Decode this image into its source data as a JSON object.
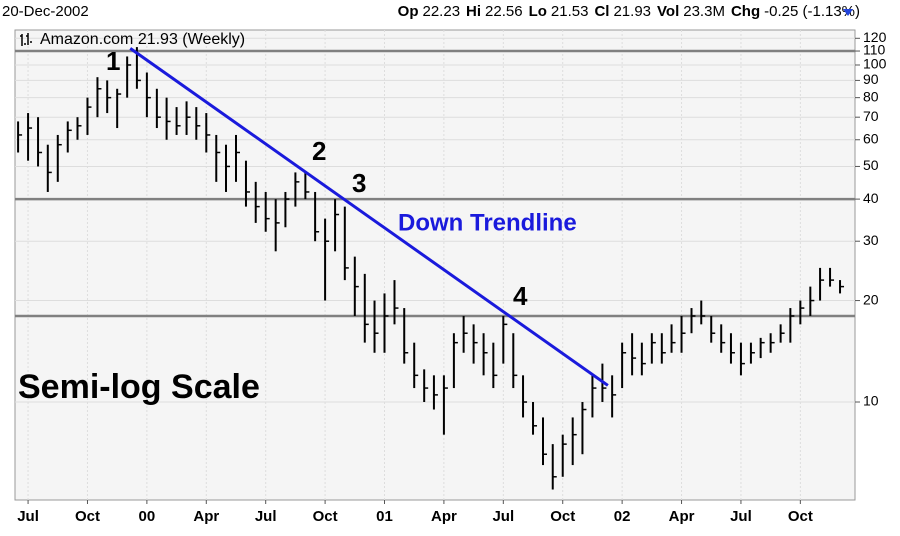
{
  "header": {
    "date": "20-Dec-2002",
    "stats": [
      {
        "label": "Op",
        "value": "22.23"
      },
      {
        "label": "Hi",
        "value": "22.56"
      },
      {
        "label": "Lo",
        "value": "21.53"
      },
      {
        "label": "Cl",
        "value": "21.93"
      },
      {
        "label": "Vol",
        "value": "23.3M"
      },
      {
        "label": "Chg",
        "value": "-0.25 (-1.13%)"
      }
    ]
  },
  "chart_data": {
    "type": "ohlc",
    "log_scale": true,
    "grid": true,
    "xlim": [
      1999.445,
      2002.98
    ],
    "ylim": [
      5.12,
      127
    ],
    "xticks": [
      {
        "value": 1999.5,
        "label": "Jul"
      },
      {
        "value": 1999.75,
        "label": "Oct"
      },
      {
        "value": 2000,
        "label": "00"
      },
      {
        "value": 2000.25,
        "label": "Apr"
      },
      {
        "value": 2000.5,
        "label": "Jul"
      },
      {
        "value": 2000.75,
        "label": "Oct"
      },
      {
        "value": 2001,
        "label": "01"
      },
      {
        "value": 2001.25,
        "label": "Apr"
      },
      {
        "value": 2001.5,
        "label": "Jul"
      },
      {
        "value": 2001.75,
        "label": "Oct"
      },
      {
        "value": 2002,
        "label": "02"
      },
      {
        "value": 2002.25,
        "label": "Apr"
      },
      {
        "value": 2002.5,
        "label": "Jul"
      },
      {
        "value": 2002.75,
        "label": "Oct"
      }
    ],
    "yticks": [
      10,
      20,
      30,
      40,
      50,
      60,
      70,
      80,
      90,
      100,
      110,
      120
    ],
    "series": [
      {
        "name": "Amazon.com 21.93 (Weekly)",
        "color": "#000000",
        "x": [
          1999.458,
          1999.5,
          1999.542,
          1999.583,
          1999.625,
          1999.667,
          1999.708,
          1999.75,
          1999.792,
          1999.833,
          1999.875,
          1999.917,
          1999.958,
          2000.0,
          2000.042,
          2000.083,
          2000.125,
          2000.167,
          2000.208,
          2000.25,
          2000.292,
          2000.333,
          2000.375,
          2000.417,
          2000.458,
          2000.5,
          2000.542,
          2000.583,
          2000.625,
          2000.667,
          2000.708,
          2000.75,
          2000.792,
          2000.833,
          2000.875,
          2000.917,
          2000.958,
          2001.0,
          2001.042,
          2001.083,
          2001.125,
          2001.167,
          2001.208,
          2001.25,
          2001.292,
          2001.333,
          2001.375,
          2001.417,
          2001.458,
          2001.5,
          2001.542,
          2001.583,
          2001.625,
          2001.667,
          2001.708,
          2001.75,
          2001.792,
          2001.833,
          2001.875,
          2001.917,
          2001.958,
          2002.0,
          2002.042,
          2002.083,
          2002.125,
          2002.167,
          2002.208,
          2002.25,
          2002.292,
          2002.333,
          2002.375,
          2002.417,
          2002.458,
          2002.5,
          2002.542,
          2002.583,
          2002.625,
          2002.667,
          2002.708,
          2002.75,
          2002.792,
          2002.833,
          2002.875,
          2002.917
        ],
        "high": [
          68,
          72,
          70,
          58,
          62,
          68,
          70,
          80,
          92,
          90,
          85,
          106,
          113,
          95,
          85,
          80,
          75,
          78,
          75,
          72,
          62,
          58,
          62,
          52,
          45,
          42,
          40,
          42,
          48,
          48,
          42,
          35,
          40,
          38,
          27,
          24,
          20,
          21,
          23,
          19,
          15,
          12.5,
          12,
          12,
          16,
          18,
          17,
          16,
          15,
          18,
          16,
          12,
          10,
          9,
          7.5,
          8,
          9,
          10,
          12,
          13,
          12,
          15,
          16,
          15,
          16,
          16,
          17,
          18,
          19,
          20,
          18,
          17,
          16,
          15,
          15,
          15.5,
          16,
          17,
          19,
          20,
          22,
          25,
          25,
          23
        ],
        "low": [
          55,
          52,
          50,
          42,
          45,
          55,
          60,
          62,
          70,
          72,
          65,
          80,
          85,
          70,
          65,
          60,
          62,
          62,
          60,
          55,
          45,
          42,
          45,
          38,
          34,
          32,
          28,
          33,
          38,
          40,
          30,
          20,
          28,
          23,
          18,
          15,
          14,
          14,
          17,
          13,
          11,
          10,
          9.5,
          8,
          11,
          14,
          13,
          12,
          11,
          13,
          11,
          9,
          8,
          6.5,
          5.5,
          6,
          6.5,
          7,
          9,
          10,
          9,
          11,
          12,
          12,
          13,
          13,
          14,
          14,
          16,
          17,
          15,
          14,
          13,
          12,
          13,
          13.5,
          14,
          15,
          15,
          17,
          18,
          20,
          22,
          21
        ],
        "close": [
          62,
          65,
          55,
          48,
          58,
          64,
          66,
          75,
          85,
          80,
          82,
          100,
          90,
          80,
          70,
          68,
          66,
          70,
          66,
          62,
          55,
          50,
          55,
          42,
          38,
          35,
          34,
          40,
          45,
          42,
          32,
          30,
          36,
          25,
          22,
          17,
          16,
          18,
          19,
          14,
          12,
          11,
          10.5,
          11,
          15,
          16,
          15,
          14,
          12,
          17,
          12,
          10,
          8.5,
          7,
          6,
          7.5,
          8,
          9.5,
          11,
          11,
          10.5,
          14,
          13.5,
          13,
          15,
          14,
          15,
          16,
          18,
          18,
          16,
          15,
          14,
          13,
          14,
          15,
          15,
          16,
          18,
          19,
          20,
          23,
          23,
          22
        ]
      }
    ],
    "hlines": [
      110,
      40,
      18
    ],
    "trendline": {
      "x": [
        1999.93,
        2001.94
      ],
      "y": [
        112,
        11.2
      ],
      "color": "#1a1adc"
    },
    "annotations": [
      "1",
      "2",
      "3",
      "4",
      "Down Trendline",
      "Semi-log Scale"
    ]
  }
}
